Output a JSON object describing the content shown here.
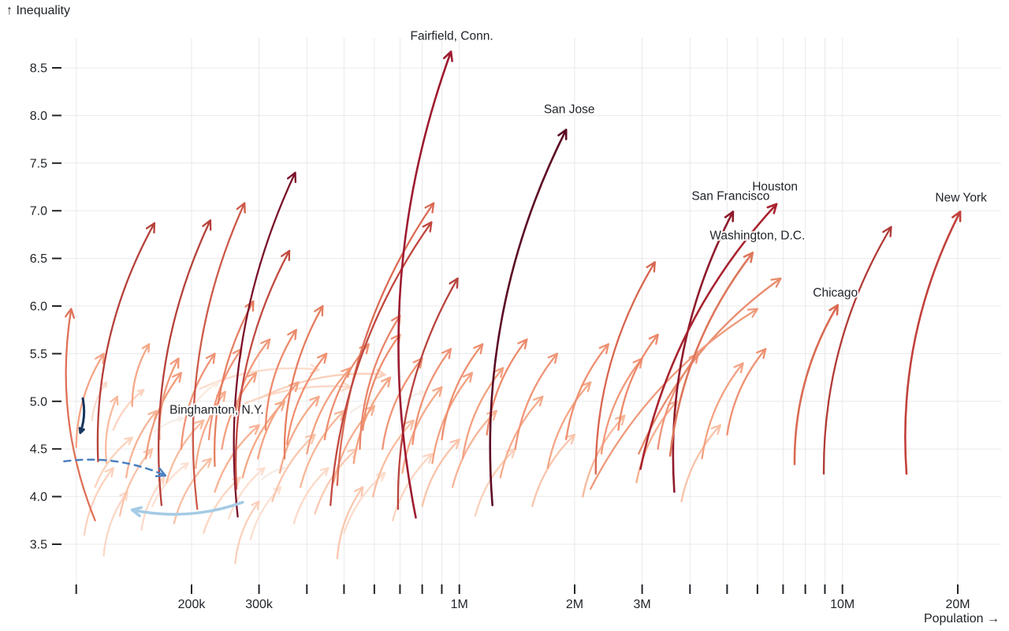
{
  "chart": {
    "y_title": "↑ Inequality",
    "x_title": "Population →"
  },
  "chart_data": {
    "type": "scatter",
    "mark": "arrow",
    "title": "",
    "xlabel": "Population →",
    "ylabel": "↑ Inequality",
    "x_scale": "log",
    "grid": true,
    "x_ticks": [
      {
        "v": 200000,
        "label": "200k"
      },
      {
        "v": 300000,
        "label": "300k"
      },
      {
        "v": 1000000,
        "label": "1M"
      },
      {
        "v": 2000000,
        "label": "2M"
      },
      {
        "v": 3000000,
        "label": "3M"
      },
      {
        "v": 10000000,
        "label": "10M"
      },
      {
        "v": 20000000,
        "label": "20M"
      }
    ],
    "x_minor_ticks": [
      100000,
      200000,
      300000,
      400000,
      500000,
      600000,
      700000,
      800000,
      900000,
      1000000,
      2000000,
      3000000,
      4000000,
      5000000,
      6000000,
      7000000,
      8000000,
      9000000,
      10000000,
      20000000
    ],
    "y_ticks": [
      3.5,
      4.0,
      4.5,
      5.0,
      5.5,
      6.0,
      6.5,
      7.0,
      7.5,
      8.0,
      8.5
    ],
    "y_tick_labels": [
      "3.5",
      "4.0",
      "4.5",
      "5.0",
      "5.5",
      "6.0",
      "6.5",
      "7.0",
      "7.5",
      "8.0",
      "8.5"
    ],
    "colors": {
      "grid": "#e9e9e9",
      "tick": "#212529",
      "text": "#212529",
      "label_halo": "#ffffff",
      "background": "#ffffff"
    },
    "arrows_format": "[pop_start, inequality_start, pop_end, inequality_end, color, {optional: label, dx, dy, w, dash}]",
    "arrows": [
      [
        105000,
        3.6,
        125000,
        4.3,
        "#fbd2bd"
      ],
      [
        110000,
        4.8,
        120000,
        5.2,
        "#fadcce"
      ],
      [
        112000,
        4.1,
        140000,
        4.62,
        "#fbd2bd"
      ],
      [
        118000,
        3.38,
        136000,
        4.05,
        "#fbd6c6"
      ],
      [
        100000,
        4.52,
        118000,
        5.5,
        "#f4a384"
      ],
      [
        125000,
        4.7,
        150000,
        5.12,
        "#fbd3bf"
      ],
      [
        148000,
        3.65,
        170000,
        4.2,
        "#fcd9c7"
      ],
      [
        158000,
        3.9,
        196000,
        4.35,
        "#fde0d1"
      ],
      [
        180000,
        3.72,
        225000,
        4.4,
        "#f8c0a5"
      ],
      [
        215000,
        3.62,
        268000,
        4.2,
        "#fbd5c1"
      ],
      [
        250000,
        3.77,
        310000,
        4.3,
        "#fcdecf"
      ],
      [
        285000,
        3.55,
        342000,
        4.1,
        "#fbe0d2"
      ],
      [
        260000,
        3.3,
        300000,
        3.95,
        "#fad0bc"
      ],
      [
        325000,
        3.95,
        420000,
        4.65,
        "#f9c6ad"
      ],
      [
        370000,
        3.72,
        455000,
        4.3,
        "#fcd9c8"
      ],
      [
        420000,
        3.82,
        540000,
        4.5,
        "#f9c9b1"
      ],
      [
        480000,
        3.35,
        560000,
        4.1,
        "#f9c7ae"
      ],
      [
        500000,
        3.62,
        640000,
        4.25,
        "#fbdccd"
      ],
      [
        670000,
        3.75,
        850000,
        4.45,
        "#fbd4c0"
      ],
      [
        800000,
        3.9,
        1000000,
        4.6,
        "#f9c3a9"
      ],
      [
        1100000,
        3.8,
        1400000,
        4.5,
        "#fbd0ba"
      ],
      [
        1550000,
        3.9,
        2000000,
        4.65,
        "#f9c5ac"
      ],
      [
        2100000,
        4.0,
        2700000,
        4.85,
        "#f7b89b"
      ],
      [
        2900000,
        4.15,
        3700000,
        5.0,
        "#f6ae8f"
      ],
      [
        3800000,
        3.95,
        4800000,
        4.75,
        "#f9c2a8"
      ],
      [
        160000,
        4.68,
        190000,
        4.82,
        "#f6ede7"
      ],
      [
        305000,
        4.18,
        350000,
        4.3,
        "#f5ece6"
      ],
      [
        520000,
        4.88,
        600000,
        5.0,
        "#f4ebe5"
      ],
      [
        710000,
        4.98,
        810000,
        5.1,
        "#f6eee9"
      ],
      [
        250000,
        4.9,
        520000,
        5.15,
        "#fbd7c4"
      ],
      [
        300000,
        5.03,
        640000,
        5.28,
        "#fad0bb"
      ],
      [
        210000,
        5.13,
        430000,
        5.33,
        "#fbdccc"
      ],
      [
        195000,
        4.85,
        235000,
        5.2,
        "#fceadf"
      ],
      [
        230000,
        4.05,
        300000,
        4.75,
        "#f7b294"
      ],
      [
        385000,
        4.1,
        500000,
        4.9,
        "#f7b698"
      ],
      [
        595000,
        4.0,
        760000,
        4.8,
        "#f8bda1"
      ],
      [
        960000,
        4.1,
        1250000,
        4.9,
        "#f7b396"
      ],
      [
        120000,
        4.35,
        128000,
        5.05,
        "#f8bba0"
      ],
      [
        130000,
        3.8,
        158000,
        4.5,
        "#f9c3aa"
      ],
      [
        172000,
        4.15,
        215000,
        4.8,
        "#f8bc9f"
      ],
      [
        135000,
        4.2,
        162000,
        4.9,
        "#f7b497"
      ],
      [
        140000,
        4.95,
        155000,
        5.6,
        "#f4a787"
      ],
      [
        152000,
        4.4,
        188000,
        5.3,
        "#f29c7c"
      ],
      [
        165000,
        4.6,
        185000,
        5.45,
        "#f1987a"
      ],
      [
        188000,
        4.5,
        230000,
        5.5,
        "#ef9375"
      ],
      [
        205000,
        4.3,
        245000,
        5.1,
        "#f6ad8e"
      ],
      [
        222000,
        4.6,
        270000,
        5.55,
        "#f09478"
      ],
      [
        240000,
        4.5,
        295000,
        5.3,
        "#f3a080"
      ],
      [
        260000,
        4.85,
        320000,
        5.65,
        "#f1997b"
      ],
      [
        272000,
        4.2,
        350000,
        5.0,
        "#f5a886"
      ],
      [
        298000,
        4.4,
        380000,
        5.2,
        "#f3a383"
      ],
      [
        312000,
        4.7,
        375000,
        5.75,
        "#ec8a6b"
      ],
      [
        340000,
        4.25,
        430000,
        5.05,
        "#f5ab8b"
      ],
      [
        355000,
        4.55,
        450000,
        5.5,
        "#ef9072"
      ],
      [
        400000,
        4.45,
        520000,
        5.35,
        "#f2a181"
      ],
      [
        445000,
        4.6,
        580000,
        5.6,
        "#ee8e6f"
      ],
      [
        470000,
        4.15,
        600000,
        4.95,
        "#f6af90"
      ],
      [
        530000,
        4.35,
        660000,
        5.25,
        "#f3a584"
      ],
      [
        560000,
        4.7,
        700000,
        5.7,
        "#ed8c6c"
      ],
      [
        630000,
        4.5,
        800000,
        5.45,
        "#f09477"
      ],
      [
        710000,
        4.25,
        900000,
        5.15,
        "#f5aa8a"
      ],
      [
        755000,
        4.55,
        950000,
        5.55,
        "#ef9173"
      ],
      [
        850000,
        4.35,
        1080000,
        5.3,
        "#f3a283"
      ],
      [
        900000,
        4.6,
        1150000,
        5.6,
        "#ee8e6e"
      ],
      [
        1020000,
        4.4,
        1300000,
        5.35,
        "#f2a080"
      ],
      [
        1180000,
        4.65,
        1500000,
        5.65,
        "#ed8b6b"
      ],
      [
        1280000,
        4.2,
        1650000,
        5.05,
        "#f5ab8c"
      ],
      [
        1400000,
        4.5,
        1800000,
        5.5,
        "#f09578"
      ],
      [
        1700000,
        4.3,
        2200000,
        5.2,
        "#f4a686"
      ],
      [
        1900000,
        4.6,
        2450000,
        5.6,
        "#ee8f70"
      ],
      [
        2350000,
        4.45,
        3000000,
        5.45,
        "#f1997a"
      ],
      [
        2600000,
        4.7,
        3300000,
        5.7,
        "#ec8868"
      ],
      [
        3300000,
        4.5,
        4200000,
        5.5,
        "#f09376"
      ],
      [
        4300000,
        4.4,
        5500000,
        5.4,
        "#f3a182"
      ],
      [
        5000000,
        4.65,
        6300000,
        5.55,
        "#ee9071"
      ],
      [
        350000,
        4.4,
        440000,
        6.0,
        "#e57e60"
      ],
      [
        550000,
        4.5,
        700000,
        5.9,
        "#e8846a"
      ],
      [
        230000,
        4.32,
        290000,
        6.05,
        "#e57e60"
      ],
      [
        112000,
        3.75,
        97000,
        5.97,
        "#df7158"
      ],
      [
        114000,
        4.37,
        160000,
        6.87,
        "#b5403a"
      ],
      [
        167000,
        3.91,
        224000,
        6.9,
        "#b5403a"
      ],
      [
        207000,
        3.87,
        275000,
        7.08,
        "#cc5a49"
      ],
      [
        264000,
        3.79,
        373000,
        7.4,
        "#7a1128"
      ],
      [
        262000,
        4.08,
        360000,
        6.58,
        "#c24a41"
      ],
      [
        480000,
        4.12,
        857000,
        7.08,
        "#d96b54"
      ],
      [
        461000,
        3.91,
        846000,
        6.88,
        "#c0473f"
      ],
      [
        692000,
        3.87,
        990000,
        6.29,
        "#b8423c"
      ],
      [
        2270000,
        4.24,
        3240000,
        6.46,
        "#d8654f"
      ],
      [
        2940000,
        4.45,
        6900000,
        6.29,
        "#e88b6c"
      ],
      [
        2200000,
        4.08,
        6000000,
        5.97,
        "#ef9a7b"
      ],
      [
        8940000,
        4.24,
        13400000,
        6.83,
        "#b03a36"
      ],
      [
        770000,
        3.78,
        951000,
        8.67,
        "#9e1b30",
        {
          "label": "Fairfield, Conn.",
          "dx": 1,
          "dy": -20,
          "w": 2.6
        }
      ],
      [
        1220000,
        3.91,
        1900000,
        7.85,
        "#5c0a23",
        {
          "label": "San Jose",
          "dx": 4,
          "dy": -26,
          "w": 2.6
        }
      ],
      [
        3640000,
        4.05,
        5180000,
        6.99,
        "#8f1a2c",
        {
          "label": "San Francisco",
          "dx": -3,
          "dy": -20,
          "w": 2.6
        }
      ],
      [
        2970000,
        4.29,
        6730000,
        7.07,
        "#a8232e",
        {
          "label": "Houston",
          "dx": -2,
          "dy": -22,
          "w": 2.6
        }
      ],
      [
        3550000,
        4.43,
        5830000,
        6.56,
        "#dd765b",
        {
          "label": "Washington, D.C.",
          "dx": 6,
          "dy": -22,
          "w": 2.6
        }
      ],
      [
        7500000,
        4.34,
        9720000,
        6.01,
        "#d96a52",
        {
          "label": "Chicago",
          "dx": -3,
          "dy": -16,
          "w": 2.6
        }
      ],
      [
        14700000,
        4.24,
        20300000,
        6.99,
        "#c2413c",
        {
          "label": "New York",
          "dx": 1,
          "dy": -18,
          "w": 2.6
        }
      ],
      [
        93000,
        4.37,
        171000,
        4.22,
        "#4a80c0",
        {
          "dash": "8 7",
          "w": 2.5
        }
      ],
      [
        272000,
        3.94,
        140000,
        3.86,
        "#a5cbe5",
        {
          "w": 3.5
        }
      ],
      [
        104000,
        5.03,
        102500,
        4.67,
        "#17375e",
        {
          "label": "Binghamton, N.Y.",
          "dx": 173,
          "dy": -29,
          "w": 3
        }
      ]
    ]
  }
}
